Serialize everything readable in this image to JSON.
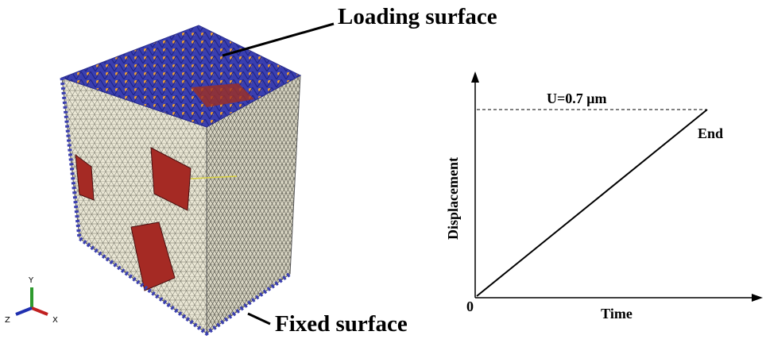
{
  "cube": {
    "labels": {
      "loading": "Loading surface",
      "fixed": "Fixed surface"
    },
    "triad": {
      "y": "Y",
      "z": "Z",
      "x": "X"
    }
  },
  "graph": {
    "y_label": "Displacement",
    "x_label": "Time",
    "origin": "0",
    "level": "U=0.7 μm",
    "end": "End"
  }
}
